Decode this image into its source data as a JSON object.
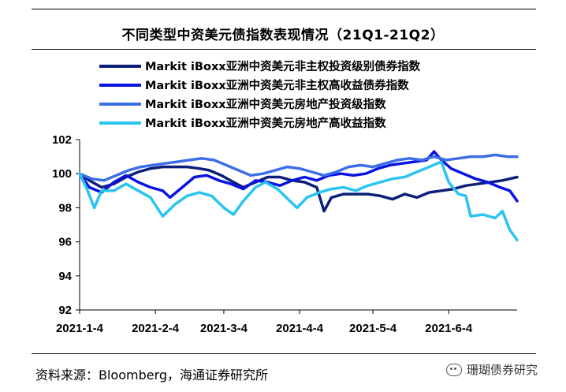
{
  "title": "不同类型中资美元债指数表现情况（21Q1-21Q2）",
  "source": "资料来源：Bloomberg，海通证券研究所",
  "watermark": "珊瑚债券研究",
  "chart_data": {
    "type": "line",
    "title": "不同类型中资美元债指数表现情况（21Q1-21Q2）",
    "ylim": [
      92,
      102
    ],
    "yticks": [
      92,
      94,
      96,
      98,
      100,
      102
    ],
    "xlim": [
      "2021-01-04",
      "2021-07-02"
    ],
    "xticks": [
      {
        "label": "2021-1-4",
        "date": "2021-01-04"
      },
      {
        "label": "2021-2-4",
        "date": "2021-02-04"
      },
      {
        "label": "2021-3-4",
        "date": "2021-03-04"
      },
      {
        "label": "2021-4-4",
        "date": "2021-04-04"
      },
      {
        "label": "2021-5-4",
        "date": "2021-05-04"
      },
      {
        "label": "2021-6-4",
        "date": "2021-06-04"
      }
    ],
    "grid": false,
    "legend": "top-left",
    "series": [
      {
        "name": "Markit iBoxx亚洲中资美元非主权投资级别债券指数",
        "color": "#0b1f7a",
        "points": [
          [
            "2021-01-04",
            100.0
          ],
          [
            "2021-01-08",
            99.6
          ],
          [
            "2021-01-13",
            99.2
          ],
          [
            "2021-01-18",
            99.4
          ],
          [
            "2021-01-23",
            99.8
          ],
          [
            "2021-01-28",
            100.1
          ],
          [
            "2021-02-02",
            100.3
          ],
          [
            "2021-02-07",
            100.4
          ],
          [
            "2021-02-12",
            100.4
          ],
          [
            "2021-02-17",
            100.4
          ],
          [
            "2021-02-22",
            100.3
          ],
          [
            "2021-02-26",
            100.2
          ],
          [
            "2021-03-03",
            99.9
          ],
          [
            "2021-03-08",
            99.5
          ],
          [
            "2021-03-12",
            99.2
          ],
          [
            "2021-03-17",
            99.5
          ],
          [
            "2021-03-22",
            99.8
          ],
          [
            "2021-03-27",
            99.8
          ],
          [
            "2021-04-01",
            99.6
          ],
          [
            "2021-04-06",
            99.5
          ],
          [
            "2021-04-11",
            99.2
          ],
          [
            "2021-04-14",
            97.8
          ],
          [
            "2021-04-17",
            98.6
          ],
          [
            "2021-04-22",
            98.8
          ],
          [
            "2021-04-27",
            98.8
          ],
          [
            "2021-05-02",
            98.8
          ],
          [
            "2021-05-07",
            98.7
          ],
          [
            "2021-05-12",
            98.5
          ],
          [
            "2021-05-17",
            98.8
          ],
          [
            "2021-05-22",
            98.6
          ],
          [
            "2021-05-27",
            98.9
          ],
          [
            "2021-06-01",
            99.0
          ],
          [
            "2021-06-06",
            99.1
          ],
          [
            "2021-06-11",
            99.3
          ],
          [
            "2021-06-16",
            99.4
          ],
          [
            "2021-06-21",
            99.5
          ],
          [
            "2021-06-26",
            99.6
          ],
          [
            "2021-07-02",
            99.8
          ]
        ]
      },
      {
        "name": "Markit iBoxx亚洲中资美元非主权高收益债券指数",
        "color": "#0a14e0",
        "points": [
          [
            "2021-01-04",
            100.0
          ],
          [
            "2021-01-08",
            99.2
          ],
          [
            "2021-01-13",
            98.9
          ],
          [
            "2021-01-18",
            99.5
          ],
          [
            "2021-01-23",
            99.9
          ],
          [
            "2021-01-28",
            99.5
          ],
          [
            "2021-02-02",
            99.2
          ],
          [
            "2021-02-07",
            99.0
          ],
          [
            "2021-02-10",
            98.6
          ],
          [
            "2021-02-15",
            99.2
          ],
          [
            "2021-02-20",
            99.8
          ],
          [
            "2021-02-25",
            99.9
          ],
          [
            "2021-03-02",
            99.6
          ],
          [
            "2021-03-07",
            99.4
          ],
          [
            "2021-03-12",
            99.1
          ],
          [
            "2021-03-17",
            99.6
          ],
          [
            "2021-03-22",
            99.5
          ],
          [
            "2021-03-27",
            99.3
          ],
          [
            "2021-04-01",
            99.6
          ],
          [
            "2021-04-06",
            99.8
          ],
          [
            "2021-04-11",
            99.6
          ],
          [
            "2021-04-16",
            99.9
          ],
          [
            "2021-04-21",
            100.0
          ],
          [
            "2021-04-26",
            99.9
          ],
          [
            "2021-05-01",
            100.0
          ],
          [
            "2021-05-06",
            100.3
          ],
          [
            "2021-05-11",
            100.5
          ],
          [
            "2021-05-16",
            100.6
          ],
          [
            "2021-05-21",
            100.7
          ],
          [
            "2021-05-26",
            100.8
          ],
          [
            "2021-05-29",
            101.3
          ],
          [
            "2021-06-01",
            100.8
          ],
          [
            "2021-06-05",
            100.3
          ],
          [
            "2021-06-10",
            100.0
          ],
          [
            "2021-06-15",
            99.7
          ],
          [
            "2021-06-20",
            99.5
          ],
          [
            "2021-06-25",
            99.2
          ],
          [
            "2021-06-29",
            99.0
          ],
          [
            "2021-07-02",
            98.4
          ]
        ]
      },
      {
        "name": "Markit iBoxx亚洲中资美元房地产投资级指数",
        "color": "#3d6ee8",
        "points": [
          [
            "2021-01-04",
            100.0
          ],
          [
            "2021-01-09",
            99.7
          ],
          [
            "2021-01-14",
            99.6
          ],
          [
            "2021-01-19",
            99.9
          ],
          [
            "2021-01-24",
            100.2
          ],
          [
            "2021-01-29",
            100.4
          ],
          [
            "2021-02-03",
            100.5
          ],
          [
            "2021-02-08",
            100.6
          ],
          [
            "2021-02-13",
            100.7
          ],
          [
            "2021-02-18",
            100.8
          ],
          [
            "2021-02-23",
            100.9
          ],
          [
            "2021-02-28",
            100.8
          ],
          [
            "2021-03-05",
            100.5
          ],
          [
            "2021-03-10",
            100.2
          ],
          [
            "2021-03-15",
            99.9
          ],
          [
            "2021-03-20",
            100.0
          ],
          [
            "2021-03-25",
            100.2
          ],
          [
            "2021-03-30",
            100.4
          ],
          [
            "2021-04-04",
            100.3
          ],
          [
            "2021-04-09",
            100.1
          ],
          [
            "2021-04-14",
            99.9
          ],
          [
            "2021-04-19",
            100.1
          ],
          [
            "2021-04-24",
            100.4
          ],
          [
            "2021-04-29",
            100.5
          ],
          [
            "2021-05-04",
            100.4
          ],
          [
            "2021-05-09",
            100.6
          ],
          [
            "2021-05-14",
            100.8
          ],
          [
            "2021-05-19",
            100.9
          ],
          [
            "2021-05-24",
            100.8
          ],
          [
            "2021-05-29",
            101.0
          ],
          [
            "2021-06-03",
            100.8
          ],
          [
            "2021-06-08",
            100.9
          ],
          [
            "2021-06-13",
            101.0
          ],
          [
            "2021-06-18",
            101.0
          ],
          [
            "2021-06-23",
            101.1
          ],
          [
            "2021-06-28",
            101.0
          ],
          [
            "2021-07-02",
            101.0
          ]
        ]
      },
      {
        "name": "Markit iBoxx亚洲中资美元房地产高收益指数",
        "color": "#29c4f0",
        "points": [
          [
            "2021-01-04",
            100.0
          ],
          [
            "2021-01-07",
            99.1
          ],
          [
            "2021-01-10",
            98.0
          ],
          [
            "2021-01-13",
            99.0
          ],
          [
            "2021-01-18",
            99.0
          ],
          [
            "2021-01-23",
            99.4
          ],
          [
            "2021-01-28",
            99.0
          ],
          [
            "2021-02-02",
            98.6
          ],
          [
            "2021-02-07",
            97.5
          ],
          [
            "2021-02-12",
            98.2
          ],
          [
            "2021-02-17",
            98.7
          ],
          [
            "2021-02-22",
            98.9
          ],
          [
            "2021-02-27",
            98.7
          ],
          [
            "2021-03-04",
            98.0
          ],
          [
            "2021-03-08",
            97.6
          ],
          [
            "2021-03-12",
            98.4
          ],
          [
            "2021-03-17",
            99.2
          ],
          [
            "2021-03-21",
            99.5
          ],
          [
            "2021-03-26",
            99.1
          ],
          [
            "2021-03-31",
            98.4
          ],
          [
            "2021-04-03",
            98.0
          ],
          [
            "2021-04-07",
            98.6
          ],
          [
            "2021-04-12",
            98.9
          ],
          [
            "2021-04-17",
            99.1
          ],
          [
            "2021-04-22",
            99.2
          ],
          [
            "2021-04-27",
            99.0
          ],
          [
            "2021-05-02",
            99.3
          ],
          [
            "2021-05-07",
            99.5
          ],
          [
            "2021-05-12",
            99.7
          ],
          [
            "2021-05-17",
            99.8
          ],
          [
            "2021-05-22",
            100.1
          ],
          [
            "2021-05-27",
            100.4
          ],
          [
            "2021-06-01",
            100.7
          ],
          [
            "2021-06-04",
            99.5
          ],
          [
            "2021-06-08",
            98.8
          ],
          [
            "2021-06-11",
            98.7
          ],
          [
            "2021-06-13",
            97.5
          ],
          [
            "2021-06-18",
            97.6
          ],
          [
            "2021-06-23",
            97.4
          ],
          [
            "2021-06-26",
            97.8
          ],
          [
            "2021-06-29",
            96.7
          ],
          [
            "2021-07-02",
            96.1
          ]
        ]
      }
    ]
  }
}
